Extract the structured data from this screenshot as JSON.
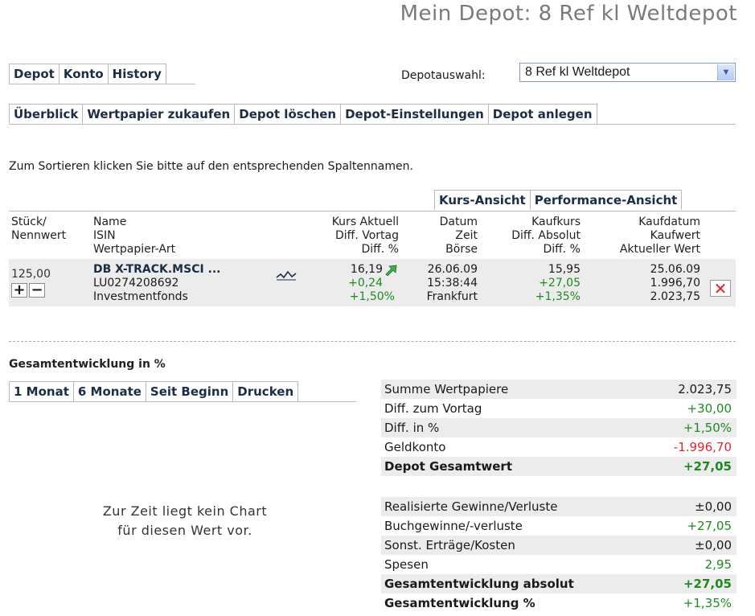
{
  "page_title": "Mein Depot: 8 Ref kl Weltdepot",
  "main_tabs": [
    "Depot",
    "Konto",
    "History"
  ],
  "depotauswahl": {
    "label": "Depotauswahl:",
    "value": "8 Ref kl Weltdepot"
  },
  "sub_tabs": [
    "Überblick",
    "Wertpapier zukaufen",
    "Depot löschen",
    "Depot-Einstellungen",
    "Depot anlegen"
  ],
  "sort_note": "Zum Sortieren klicken Sie bitte auf den entsprechenden Spaltennamen.",
  "view_tabs": [
    "Kurs-Ansicht",
    "Performance-Ansicht"
  ],
  "table": {
    "headers": {
      "stueck": [
        "Stück/",
        "Nennwert"
      ],
      "name": [
        "Name",
        "ISIN",
        "Wertpapier-Art"
      ],
      "kurs": [
        "Kurs Aktuell",
        "Diff. Vortag",
        "Diff. %"
      ],
      "datum": [
        "Datum",
        "Zeit",
        "Börse"
      ],
      "kaufkurs": [
        "Kaufkurs",
        "Diff. Absolut",
        "Diff. %"
      ],
      "kaufdatum": [
        "Kaufdatum",
        "Kaufwert",
        "Aktueller Wert"
      ]
    },
    "row": {
      "stueck": "125,00",
      "name": "DB X-TRACK.MSCI ...",
      "isin": "LU0274208692",
      "art": "Investmentfonds",
      "kurs": "16,19",
      "diff_vortag": "+0,24",
      "diff_pct": "+1,50%",
      "datum": "26.06.09",
      "zeit": "15:38:44",
      "boerse": "Frankfurt",
      "kaufkurs": "15,95",
      "diff_abs": "+27,05",
      "diff_pct2": "+1,35%",
      "kaufdatum": "25.06.09",
      "kaufwert": "1.996,70",
      "aktueller_wert": "2.023,75"
    }
  },
  "gesamt_title": "Gesamtentwicklung in %",
  "period_tabs": [
    "1 Monat",
    "6 Monate",
    "Seit Beginn",
    "Drucken"
  ],
  "no_chart": [
    "Zur Zeit liegt kein Chart",
    "für diesen Wert vor."
  ],
  "summary1": [
    {
      "label": "Summe Wertpapiere",
      "value": "2.023,75"
    },
    {
      "label": "Diff. zum Vortag",
      "value": "+30,00"
    },
    {
      "label": "Diff. in %",
      "value": "+1,50%"
    },
    {
      "label": "Geldkonto",
      "value": "-1.996,70"
    },
    {
      "label": "Depot Gesamtwert",
      "value": "+27,05"
    }
  ],
  "summary2": [
    {
      "label": "Realisierte Gewinne/Verluste",
      "value": "±0,00"
    },
    {
      "label": "Buchgewinne/-verluste",
      "value": "+27,05"
    },
    {
      "label": "Sonst. Erträge/Kosten",
      "value": "±0,00"
    },
    {
      "label": "Spesen",
      "value": "2,95"
    },
    {
      "label": "Gesamtentwicklung absolut",
      "value": "+27,05"
    },
    {
      "label": "Gesamtentwicklung %",
      "value": "+1,35%"
    }
  ],
  "colors": {
    "positive": "#1e8a1e",
    "negative": "#e0262c",
    "row_shade": "#ececec",
    "tab_text": "#1c2e45"
  }
}
